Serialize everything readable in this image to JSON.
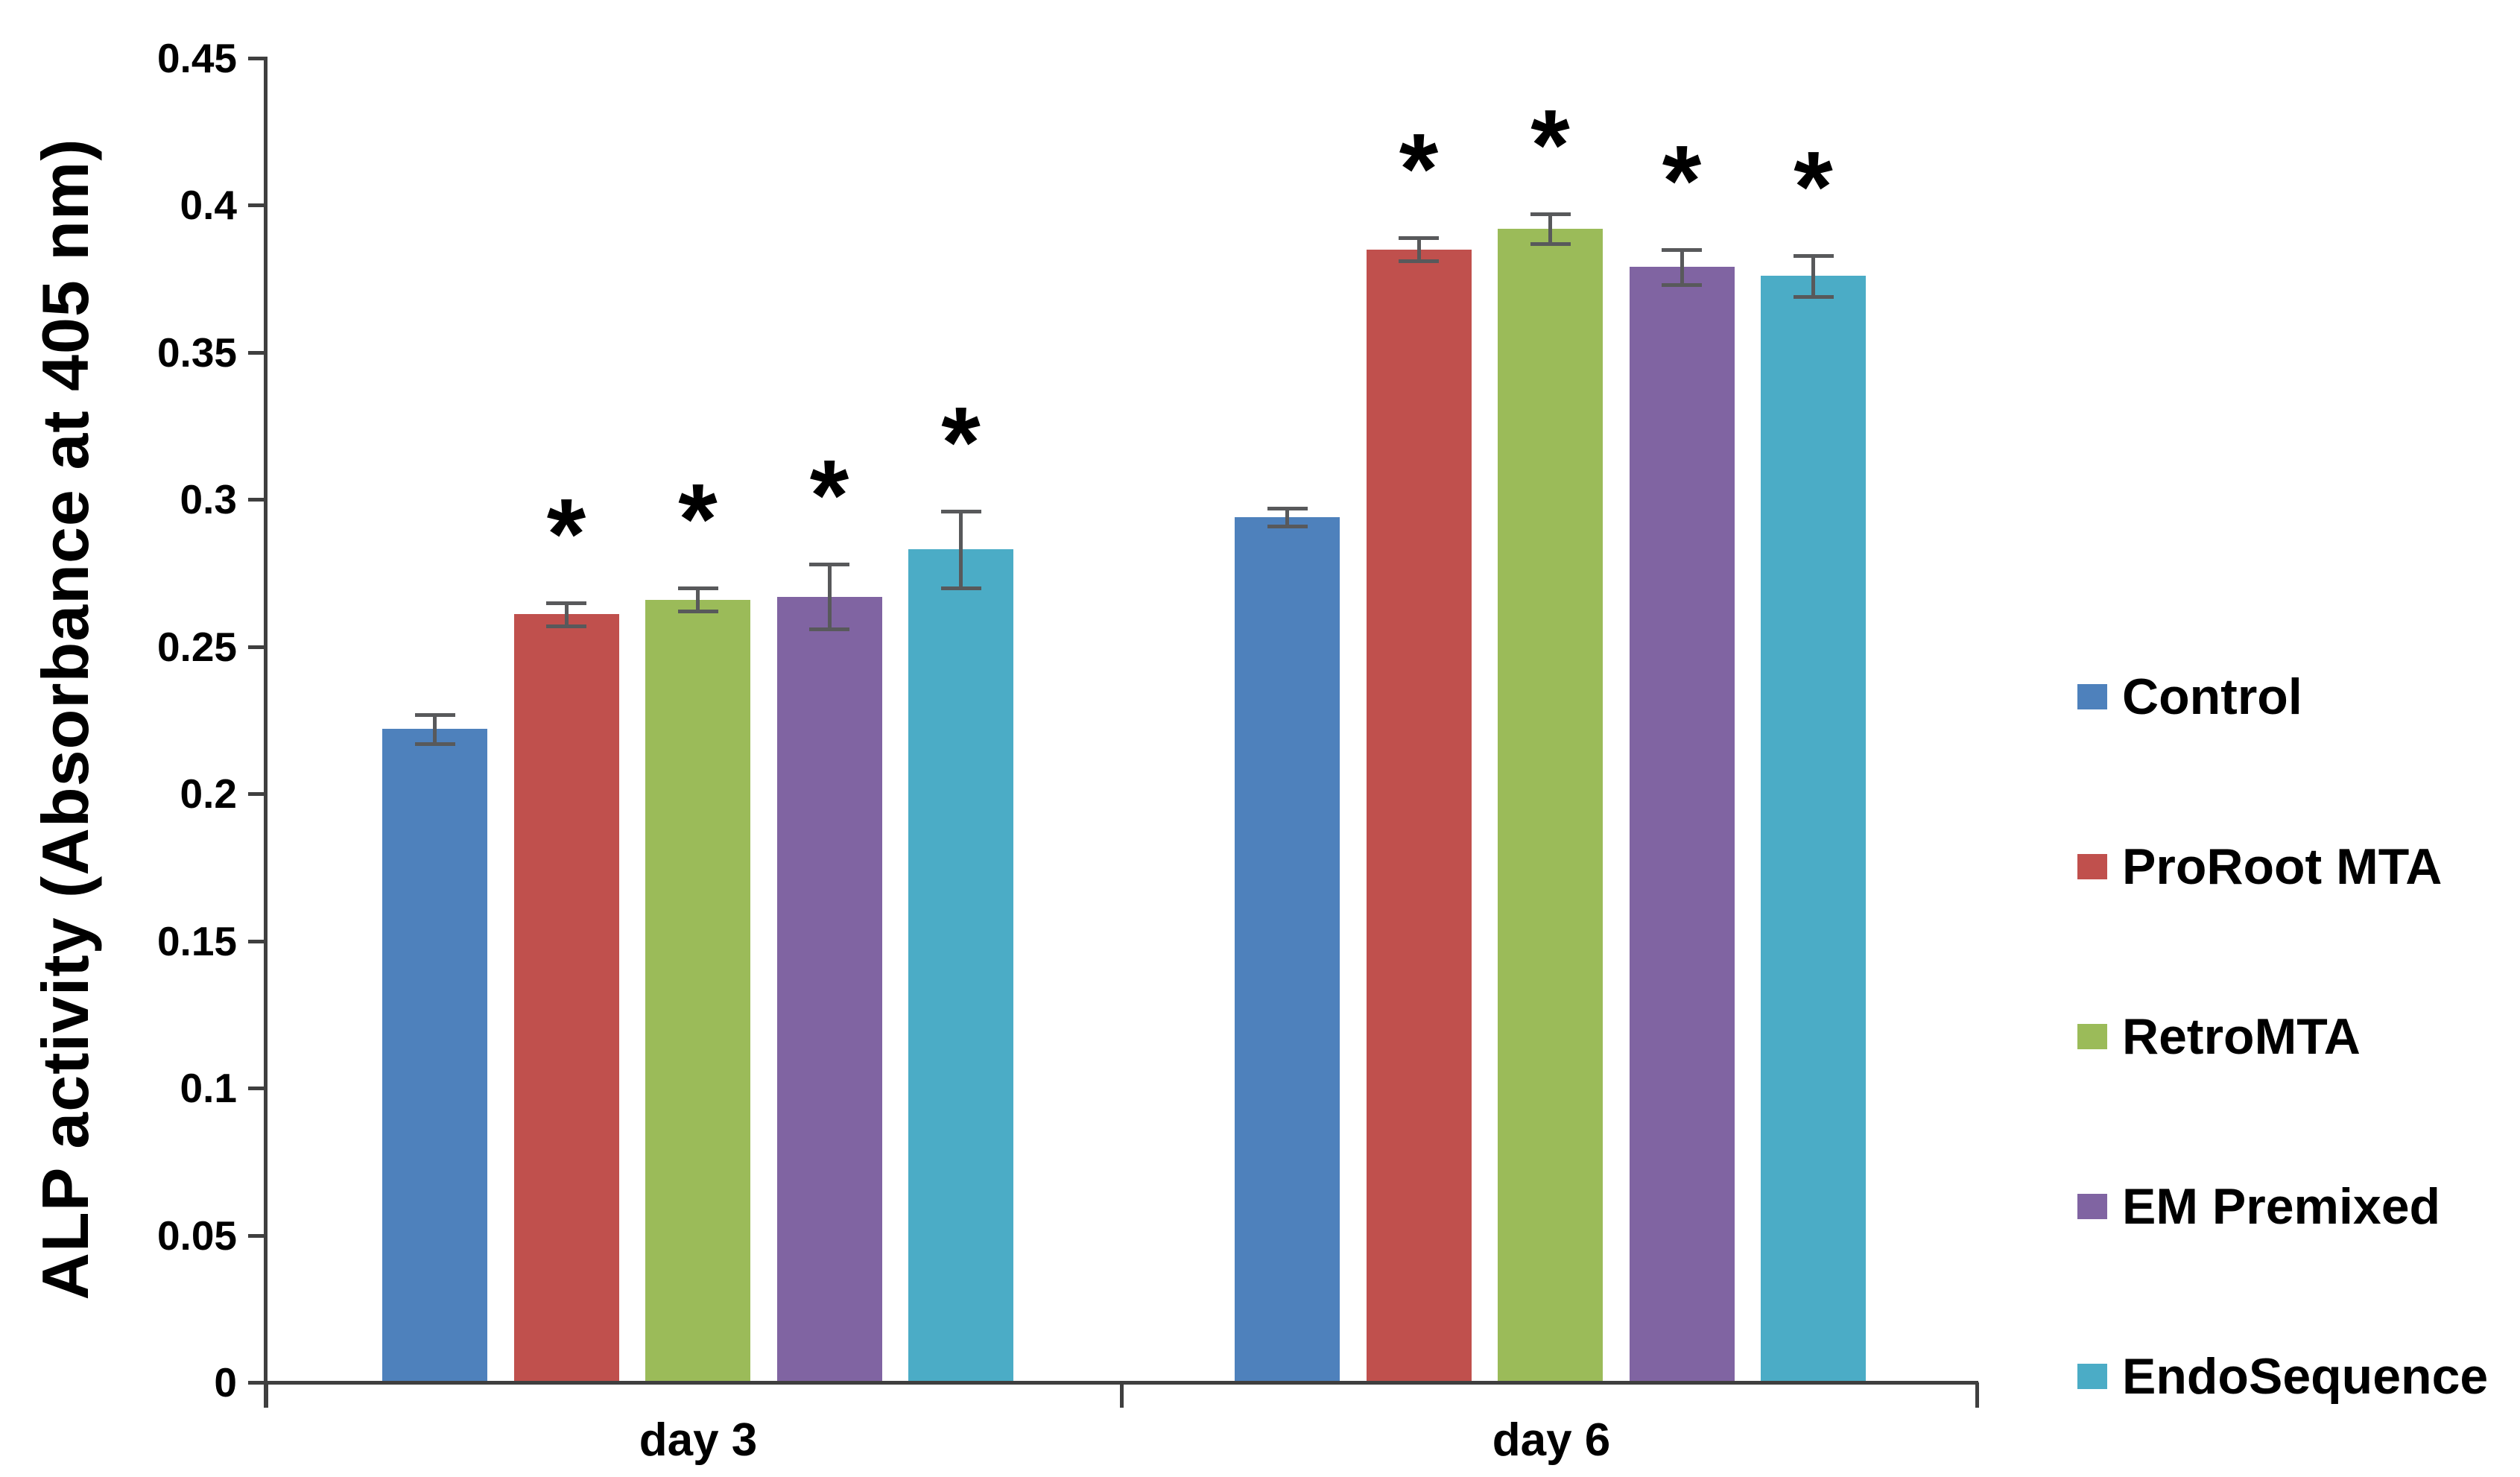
{
  "chart_data": {
    "type": "bar",
    "title": "",
    "ylabel": "ALP activity (Absorbance at 405 nm)",
    "xlabel": "",
    "categories": [
      "day 3",
      "day 6"
    ],
    "ylim": [
      0,
      0.45
    ],
    "yticks": [
      0,
      0.05,
      0.1,
      0.15,
      0.2,
      0.25,
      0.3,
      0.35,
      0.4,
      0.45
    ],
    "ytick_labels": [
      "0",
      "0.05",
      "0.1",
      "0.15",
      "0.2",
      "0.25",
      "0.3",
      "0.35",
      "0.4",
      "0.45"
    ],
    "grid": false,
    "legend_position": "right",
    "significance_marker": "*",
    "axis_color": "#3F3F3F",
    "error_bar_color": "#58595B",
    "series": [
      {
        "name": "Control",
        "color": "#4E81BC",
        "values": [
          0.222,
          0.294
        ],
        "errors": [
          0.005,
          0.003
        ],
        "significant": [
          false,
          false
        ]
      },
      {
        "name": "ProRoot MTA",
        "color": "#C0504D",
        "values": [
          0.261,
          0.385
        ],
        "errors": [
          0.004,
          0.004
        ],
        "significant": [
          true,
          true
        ]
      },
      {
        "name": "RetroMTA",
        "color": "#9BBB59",
        "values": [
          0.266,
          0.392
        ],
        "errors": [
          0.004,
          0.005
        ],
        "significant": [
          true,
          true
        ]
      },
      {
        "name": "EM Premixed",
        "color": "#8064A2",
        "values": [
          0.267,
          0.379
        ],
        "errors": [
          0.011,
          0.006
        ],
        "significant": [
          true,
          true
        ]
      },
      {
        "name": "EndoSequence",
        "color": "#4BACC6",
        "values": [
          0.283,
          0.376
        ],
        "errors": [
          0.013,
          0.007
        ],
        "significant": [
          true,
          true
        ]
      }
    ]
  }
}
